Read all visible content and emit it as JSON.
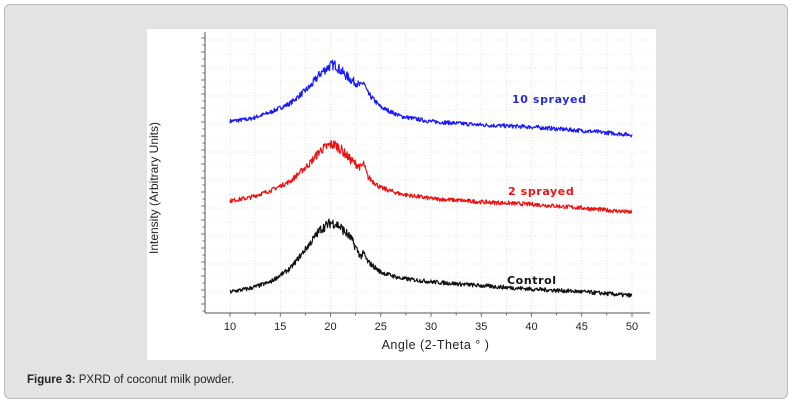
{
  "figure": {
    "caption_label": "Figure 3:",
    "caption_text": " PXRD of coconut milk powder."
  },
  "chart_data": {
    "type": "line",
    "xlabel": "Angle (2-Theta ° )",
    "ylabel": "Intensity (Arbitrary Units)",
    "xlim": [
      5,
      52
    ],
    "xticks": [
      10,
      15,
      20,
      25,
      30,
      35,
      40,
      45,
      50
    ],
    "ylim": [
      0,
      100
    ],
    "grid": true,
    "series": [
      {
        "name": "10 sprayed",
        "color": "#1a1aff",
        "label_color": "#2b2bd9",
        "points": [
          [
            10,
            70.4
          ],
          [
            12,
            71.3
          ],
          [
            14,
            73.8
          ],
          [
            16,
            77.3
          ],
          [
            18,
            83.8
          ],
          [
            19,
            88.8
          ],
          [
            20,
            91.8
          ],
          [
            20.5,
            92
          ],
          [
            21,
            89.8
          ],
          [
            22,
            86.4
          ],
          [
            23,
            84.0
          ],
          [
            23.3,
            85.4
          ],
          [
            23.7,
            81.1
          ],
          [
            25,
            75.8
          ],
          [
            27,
            72.3
          ],
          [
            30,
            70.3
          ],
          [
            35,
            69.0
          ],
          [
            40,
            68.2
          ],
          [
            45,
            66.8
          ],
          [
            50,
            65.2
          ]
        ]
      },
      {
        "name": "2 sprayed",
        "color": "#ee1111",
        "label_color": "#ee1111",
        "points": [
          [
            10,
            39.9
          ],
          [
            12,
            41.2
          ],
          [
            14,
            43.8
          ],
          [
            16,
            47.4
          ],
          [
            18,
            54.5
          ],
          [
            19,
            59.3
          ],
          [
            20,
            61.5
          ],
          [
            20.5,
            61.3
          ],
          [
            21,
            59.8
          ],
          [
            22,
            55.6
          ],
          [
            23,
            52.7
          ],
          [
            23.3,
            54.2
          ],
          [
            23.7,
            49.1
          ],
          [
            25,
            44.9
          ],
          [
            27,
            42.5
          ],
          [
            30,
            40.8
          ],
          [
            35,
            39.5
          ],
          [
            40,
            38.6
          ],
          [
            45,
            37.2
          ],
          [
            50,
            35.5
          ]
        ]
      },
      {
        "name": "Control",
        "color": "#111111",
        "label_color": "#111111",
        "points": [
          [
            10,
            5.0
          ],
          [
            12,
            6.4
          ],
          [
            14,
            8.8
          ],
          [
            16,
            14.0
          ],
          [
            18,
            23.8
          ],
          [
            19,
            29.0
          ],
          [
            20,
            31.5
          ],
          [
            20.5,
            31.3
          ],
          [
            21,
            29.8
          ],
          [
            22,
            25.7
          ],
          [
            23,
            18.6
          ],
          [
            23.3,
            19.8
          ],
          [
            23.7,
            16.6
          ],
          [
            25,
            12.6
          ],
          [
            27,
            10.2
          ],
          [
            30,
            8.9
          ],
          [
            35,
            7.4
          ],
          [
            40,
            6.1
          ],
          [
            45,
            5.1
          ],
          [
            50,
            3.6
          ]
        ]
      }
    ]
  }
}
